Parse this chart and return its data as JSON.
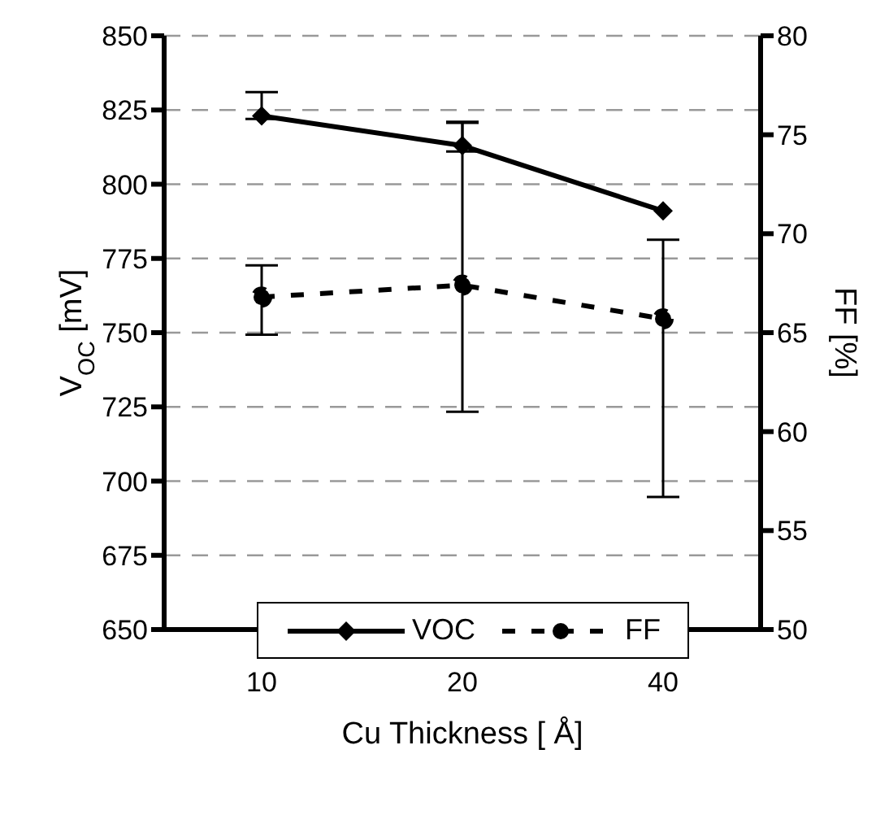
{
  "chart_data": {
    "type": "line",
    "categories": [
      "10",
      "20",
      "40"
    ],
    "xlabel": "Cu Thickness [ Å]",
    "ylabel": "V$_{OC}$ [mV]",
    "y2label": "FF [%]",
    "series": [
      {
        "name": "VOC",
        "color": "#000000",
        "values": [
          823,
          813,
          791
        ],
        "errors": [
          [
            822,
            831
          ],
          [
            811,
            821
          ],
          null
        ],
        "marker": "diamond",
        "line_style": "solid"
      },
      {
        "name": "FF",
        "color": "#000000",
        "axis": "y2",
        "values": [
          66.8,
          67.4,
          65.7
        ],
        "errors": [
          [
            64.9,
            68.4
          ],
          [
            61.0,
            75.6
          ],
          [
            56.7,
            69.7
          ]
        ],
        "marker": "circle",
        "line_style": "dashed"
      }
    ],
    "ylim": [
      650,
      850
    ],
    "yticks": [
      650,
      675,
      700,
      725,
      750,
      775,
      800,
      825,
      850
    ],
    "y2lim": [
      50,
      80
    ],
    "y2ticks": [
      50,
      55,
      60,
      65,
      70,
      75,
      80
    ],
    "grid": "y",
    "legend": "bottom"
  }
}
